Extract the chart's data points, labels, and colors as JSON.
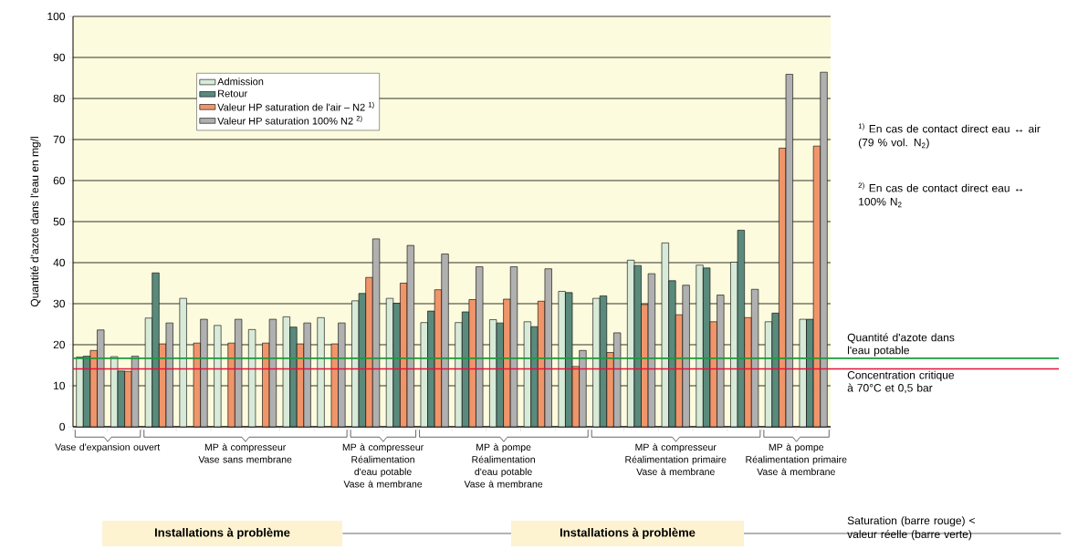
{
  "chart_data": {
    "type": "bar",
    "ylabel": "Quantité d'azote dans l'eau en mg/l",
    "categories": [
      null,
      null,
      null,
      null,
      null,
      null,
      null,
      null,
      null,
      null,
      null,
      null,
      null,
      null,
      null,
      null,
      null,
      null,
      null,
      null,
      null,
      null
    ],
    "series": [
      {
        "name": "Admission",
        "color": "#d8ead8",
        "values": [
          17.0,
          17.1,
          26.5,
          31.3,
          24.7,
          23.7,
          26.8,
          26.6,
          30.7,
          31.3,
          25.4,
          25.4,
          26.1,
          25.6,
          33.0,
          31.3,
          40.6,
          44.8,
          39.4,
          40.1,
          25.6,
          26.2
        ]
      },
      {
        "name": "Retour",
        "color": "#5a8a7c",
        "values": [
          17.2,
          13.6,
          37.5,
          null,
          null,
          null,
          24.3,
          null,
          32.5,
          30.1,
          28.2,
          28.0,
          25.3,
          24.4,
          32.7,
          31.9,
          39.3,
          35.6,
          38.7,
          47.9,
          27.7,
          26.2
        ]
      },
      {
        "name": "Valeur HP saturation de l'air – N2 $^{1)}$",
        "color": "#f0956a",
        "values": [
          18.6,
          13.5,
          20.2,
          20.4,
          20.4,
          20.4,
          20.2,
          20.2,
          36.4,
          35.0,
          33.4,
          31.0,
          31.1,
          30.6,
          14.7,
          18.1,
          29.8,
          27.3,
          25.6,
          26.6,
          67.9,
          68.4
        ]
      },
      {
        "name": "Valeur HP saturation 100% N2 $^{2)}$",
        "color": "#b0b0b0",
        "values": [
          23.6,
          17.2,
          25.3,
          26.2,
          26.2,
          26.2,
          25.3,
          25.3,
          45.8,
          44.2,
          42.1,
          39.0,
          39.0,
          38.5,
          18.6,
          22.9,
          37.3,
          34.5,
          32.1,
          33.5,
          85.9,
          86.4
        ]
      }
    ],
    "ylim": [
      0,
      100
    ],
    "yticks": [
      0,
      10,
      20,
      30,
      40,
      50,
      60,
      70,
      80,
      90,
      100
    ],
    "grid": "y",
    "legend": "top left",
    "tick_labels": "y",
    "ref_lines": [
      {
        "axis": "y",
        "value": 16.7,
        "label": "Quantité d'azote dans l'eau potable",
        "color": "#1a9a3a"
      },
      {
        "axis": "y",
        "value": 14.1,
        "label": "Concentration critique à 70°C et 0,5 bar",
        "color": "#e0143c"
      }
    ],
    "annotations": [
      "$^{1)}$ En cas de contact direct eau ↔ air (79 % vol. N$_{2}$)",
      "$^{2)}$ En cas de contact direct eau ↔ 100% N$_{2}$",
      "Vase d'expansion ouvert",
      "MP à compresseur Vase sans membrane",
      "MP à compresseur Réalimentation d'eau potable Vase à membrane",
      "MP à pompe Réalimentation d'eau potable Vase à membrane",
      "MP à compresseur Réalimentation primaire Vase à membrane",
      "MP à pompe Réalimentation primaire Vase à membrane",
      "Installations à problème",
      "Installations à problème",
      "Saturation (barre rouge) < valeur réelle (barre verte)"
    ]
  }
}
